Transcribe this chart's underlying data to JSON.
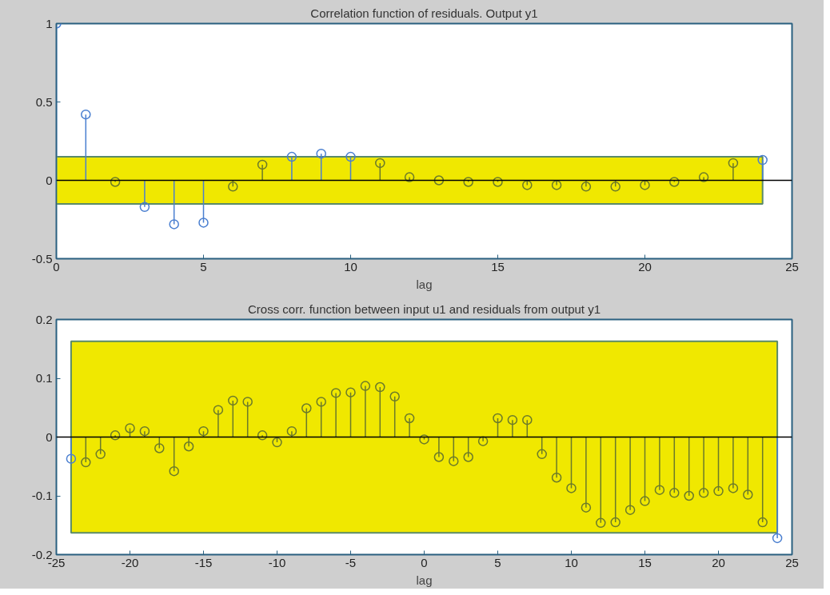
{
  "chart_data": [
    {
      "type": "lollipop",
      "title": "Correlation function of residuals. Output y1",
      "xlabel": "lag",
      "x": [
        0,
        1,
        2,
        3,
        4,
        5,
        6,
        7,
        8,
        9,
        10,
        11,
        12,
        13,
        14,
        15,
        16,
        17,
        18,
        19,
        20,
        21,
        22,
        23,
        24
      ],
      "series": [
        {
          "values": [
            1,
            0.42,
            -0.01,
            -0.17,
            -0.28,
            -0.27,
            -0.04,
            0.1,
            0.15,
            0.17,
            0.15,
            0.11,
            0.02,
            0.0,
            -0.01,
            -0.01,
            -0.03,
            -0.03,
            -0.04,
            -0.04,
            -0.03,
            -0.01,
            0.02,
            0.11,
            0.13
          ],
          "colors": [
            "#4a7fd0",
            "#4a7fd0",
            "#6b7a2a",
            "#4a7fd0",
            "#4a7fd0",
            "#4a7fd0",
            "#6b7a2a",
            "#6b7a2a",
            "#4a7fd0",
            "#4a7fd0",
            "#4a7fd0",
            "#6b7a2a",
            "#6b7a2a",
            "#6b7a2a",
            "#6b7a2a",
            "#6b7a2a",
            "#6b7a2a",
            "#6b7a2a",
            "#6b7a2a",
            "#6b7a2a",
            "#6b7a2a",
            "#6b7a2a",
            "#6b7a2a",
            "#6b7a2a",
            "#4a7fd0"
          ]
        }
      ],
      "marker": "circle",
      "xlim": [
        0,
        25
      ],
      "ylim": [
        -0.5,
        1
      ],
      "xticks": [
        0,
        5,
        10,
        15,
        20,
        25
      ],
      "yticks": [
        -0.5,
        0,
        0.5,
        1
      ],
      "grid": false,
      "bands": [
        {
          "axis": "y",
          "from": -0.15,
          "to": 0.15,
          "color": "#f0e800"
        }
      ],
      "ref_lines": [
        {
          "axis": "y",
          "value": 0,
          "color": "#000000"
        }
      ]
    },
    {
      "type": "lollipop",
      "title": "Cross corr. function between input u1 and residuals from output y1",
      "xlabel": "lag",
      "x": [
        -24,
        -23,
        -22,
        -21,
        -20,
        -19,
        -18,
        -17,
        -16,
        -15,
        -14,
        -13,
        -12,
        -11,
        -10,
        -9,
        -8,
        -7,
        -6,
        -5,
        -4,
        -3,
        -2,
        -1,
        0,
        1,
        2,
        3,
        4,
        5,
        6,
        7,
        8,
        9,
        10,
        11,
        12,
        13,
        14,
        15,
        16,
        17,
        18,
        19,
        20,
        21,
        22,
        23,
        24
      ],
      "series": [
        {
          "values": [
            -0.037,
            -0.043,
            -0.029,
            0.003,
            0.015,
            0.01,
            -0.019,
            -0.058,
            -0.016,
            0.01,
            0.046,
            0.062,
            0.06,
            0.003,
            -0.009,
            0.01,
            0.049,
            0.06,
            0.075,
            0.076,
            0.087,
            0.085,
            0.069,
            0.032,
            -0.004,
            -0.034,
            -0.041,
            -0.034,
            -0.007,
            0.032,
            0.029,
            0.029,
            -0.029,
            -0.069,
            -0.087,
            -0.12,
            -0.146,
            -0.145,
            -0.124,
            -0.109,
            -0.09,
            -0.095,
            -0.1,
            -0.095,
            -0.092,
            -0.087,
            -0.098,
            -0.145,
            -0.172
          ],
          "colors": [
            "#4a7fd0",
            "#6b7a2a",
            "#6b7a2a",
            "#6b7a2a",
            "#6b7a2a",
            "#6b7a2a",
            "#6b7a2a",
            "#6b7a2a",
            "#6b7a2a",
            "#6b7a2a",
            "#6b7a2a",
            "#6b7a2a",
            "#6b7a2a",
            "#6b7a2a",
            "#6b7a2a",
            "#6b7a2a",
            "#6b7a2a",
            "#6b7a2a",
            "#6b7a2a",
            "#6b7a2a",
            "#6b7a2a",
            "#6b7a2a",
            "#6b7a2a",
            "#6b7a2a",
            "#6b7a2a",
            "#6b7a2a",
            "#6b7a2a",
            "#6b7a2a",
            "#6b7a2a",
            "#6b7a2a",
            "#6b7a2a",
            "#6b7a2a",
            "#6b7a2a",
            "#6b7a2a",
            "#6b7a2a",
            "#6b7a2a",
            "#6b7a2a",
            "#6b7a2a",
            "#6b7a2a",
            "#6b7a2a",
            "#6b7a2a",
            "#6b7a2a",
            "#6b7a2a",
            "#6b7a2a",
            "#6b7a2a",
            "#6b7a2a",
            "#6b7a2a",
            "#6b7a2a",
            "#4a7fd0"
          ]
        }
      ],
      "marker": "circle",
      "xlim": [
        -25,
        25
      ],
      "ylim": [
        -0.2,
        0.2
      ],
      "xticks": [
        -25,
        -20,
        -15,
        -10,
        -5,
        0,
        5,
        10,
        15,
        20,
        25
      ],
      "yticks": [
        -0.2,
        -0.1,
        0,
        0.1,
        0.2
      ],
      "grid": false,
      "bands": [
        {
          "axis": "y",
          "from": -0.163,
          "to": 0.163,
          "color": "#f0e800"
        }
      ],
      "ref_lines": [
        {
          "axis": "y",
          "value": 0,
          "color": "#000000"
        }
      ]
    }
  ]
}
